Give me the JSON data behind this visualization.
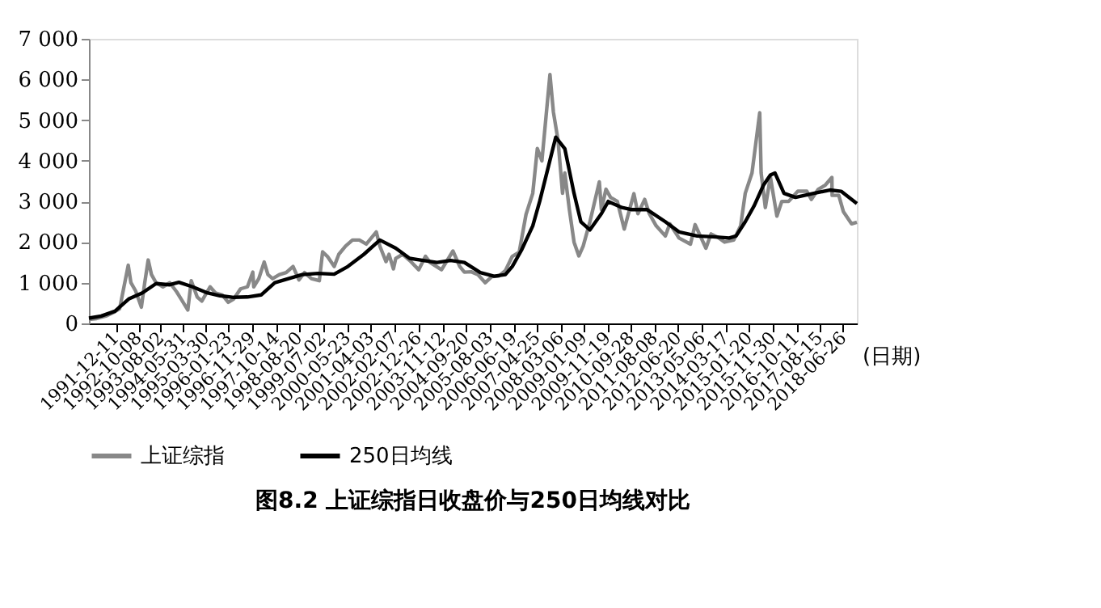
{
  "chart_data": {
    "type": "line",
    "title": "图8.2 上证综指日收盘价与250日均线对比",
    "xlabel": "(日期)",
    "xlim": [
      "1990-12-19",
      "2018-12-28"
    ],
    "xticks": [
      "1991-12-11",
      "1992-10-08",
      "1993-08-02",
      "1994-05-31",
      "1995-03-30",
      "1996-01-23",
      "1996-11-29",
      "1997-10-14",
      "1998-08-20",
      "1999-07-02",
      "2000-05-23",
      "2001-04-03",
      "2002-02-07",
      "2002-12-26",
      "2003-11-12",
      "2004-09-20",
      "2005-08-03",
      "2006-06-19",
      "2007-04-25",
      "2008-03-06",
      "2009-01-09",
      "2009-11-19",
      "2010-09-28",
      "2011-08-08",
      "2012-06-20",
      "2013-05-06",
      "2014-03-17",
      "2015-01-20",
      "2015-11-30",
      "2016-10-11",
      "2017-08-15",
      "2018-06-26"
    ],
    "ylim": [
      0,
      7000
    ],
    "yticks": [
      0,
      {
        "value": 1000,
        "label": "1 000"
      },
      {
        "value": 2000,
        "label": "2 000"
      },
      {
        "value": 3000,
        "label": "3 000"
      },
      {
        "value": 4000,
        "label": "4 000"
      },
      {
        "value": 5000,
        "label": "5 000"
      },
      {
        "value": 6000,
        "label": "6 000"
      },
      {
        "value": 7000,
        "label": "7 000"
      }
    ],
    "grid": false,
    "legend": "bottom",
    "marker": "none",
    "line_style": "solid",
    "series": [
      {
        "name": "上证综指",
        "color": "#888888",
        "x": [
          "1990-12-19",
          "1991-04",
          "1991-08",
          "1991-12",
          "1992-02",
          "1992-05-26",
          "1992-07",
          "1992-09",
          "1992-11-17",
          "1993-01",
          "1993-02-16",
          "1993-04",
          "1993-06",
          "1993-09",
          "1993-12",
          "1994-03",
          "1994-05",
          "1994-07-29",
          "1994-09-13",
          "1994-12",
          "1995-02",
          "1995-05-22",
          "1995-08",
          "1995-11",
          "1996-01-19",
          "1996-04",
          "1996-07",
          "1996-10",
          "1996-12-11",
          "1996-12-24",
          "1997-03",
          "1997-05-12",
          "1997-07",
          "1997-09",
          "1997-12",
          "1998-03",
          "1998-06",
          "1998-08-18",
          "1998-11",
          "1999-02",
          "1999-05-17",
          "1999-06-30",
          "1999-09",
          "1999-12",
          "2000-02",
          "2000-05",
          "2000-08",
          "2000-11",
          "2001-02",
          "2001-06-14",
          "2001-08",
          "2001-10-22",
          "2001-12",
          "2002-01-29",
          "2002-03",
          "2002-06",
          "2002-09",
          "2003-01",
          "2003-04",
          "2003-06",
          "2003-11",
          "2004-04",
          "2004-07",
          "2004-09",
          "2004-12",
          "2005-03",
          "2005-06-06",
          "2005-09",
          "2005-12",
          "2006-03",
          "2006-06",
          "2006-09",
          "2006-12",
          "2007-03",
          "2007-05",
          "2007-07",
          "2007-10-16",
          "2007-12",
          "2008-02",
          "2008-04",
          "2008-05",
          "2008-07",
          "2008-09",
          "2008-11-04",
          "2009-01",
          "2009-04",
          "2009-08-04",
          "2009-09",
          "2009-11",
          "2010-01",
          "2010-04",
          "2010-07-02",
          "2010-11-08",
          "2011-01",
          "2011-04",
          "2011-06",
          "2011-09",
          "2012-01",
          "2012-03",
          "2012-07",
          "2012-12",
          "2013-02",
          "2013-06-25",
          "2013-09",
          "2013-12",
          "2014-03",
          "2014-07",
          "2014-10",
          "2014-12",
          "2015-03",
          "2015-06-12",
          "2015-07",
          "2015-08-26",
          "2015-11",
          "2016-01-27",
          "2016-04",
          "2016-07",
          "2016-11",
          "2017-03",
          "2017-05",
          "2017-08",
          "2017-11",
          "2018-01-29",
          "2018-02",
          "2018-05",
          "2018-07",
          "2018-10-18",
          "2018-12-28"
        ],
        "values": [
          100,
          120,
          180,
          290,
          360,
          1430,
          1000,
          800,
          400,
          1000,
          1560,
          1200,
          1000,
          900,
          1000,
          780,
          600,
          330,
          1050,
          650,
          550,
          900,
          750,
          700,
          520,
          600,
          850,
          900,
          1260,
          900,
          1100,
          1510,
          1200,
          1100,
          1200,
          1250,
          1400,
          1070,
          1250,
          1100,
          1050,
          1760,
          1650,
          1400,
          1700,
          1900,
          2050,
          2050,
          1950,
          2250,
          1900,
          1520,
          1700,
          1340,
          1600,
          1700,
          1550,
          1320,
          1650,
          1500,
          1320,
          1780,
          1400,
          1260,
          1270,
          1200,
          1000,
          1150,
          1160,
          1300,
          1650,
          1750,
          2680,
          3200,
          4300,
          4000,
          6120,
          5200,
          4500,
          3200,
          3700,
          2800,
          2000,
          1660,
          1900,
          2500,
          3480,
          2800,
          3300,
          3100,
          3000,
          2320,
          3190,
          2700,
          3050,
          2700,
          2400,
          2150,
          2450,
          2100,
          1950,
          2430,
          1850,
          2200,
          2120,
          2000,
          2050,
          2400,
          3200,
          3700,
          5180,
          3700,
          2850,
          3600,
          2640,
          3000,
          3000,
          3250,
          3250,
          3050,
          3300,
          3400,
          3590,
          3150,
          3150,
          2750,
          2450,
          2490
        ]
      },
      {
        "name": "250日均线",
        "color": "#000000",
        "x": [
          "1990-12-19",
          "1991-06",
          "1991-12",
          "1992-06",
          "1992-12",
          "1993-06",
          "1993-12",
          "1994-04",
          "1994-10",
          "1995-04",
          "1995-10",
          "1996-04",
          "1996-10",
          "1997-04",
          "1997-10",
          "1998-04",
          "1998-10",
          "1999-05",
          "1999-12",
          "2000-06",
          "2001-01",
          "2001-08",
          "2002-03",
          "2002-09",
          "2003-03",
          "2003-09",
          "2004-03",
          "2004-09",
          "2005-04",
          "2005-10",
          "2006-03",
          "2006-06",
          "2006-10",
          "2007-03",
          "2007-06",
          "2007-10",
          "2008-01",
          "2008-05",
          "2008-09",
          "2008-12",
          "2009-04",
          "2009-09",
          "2009-12",
          "2010-06",
          "2010-10",
          "2011-05",
          "2012-01",
          "2012-07",
          "2013-03",
          "2013-10",
          "2014-05",
          "2014-08",
          "2014-12",
          "2015-04",
          "2015-08",
          "2015-11",
          "2016-01",
          "2016-05",
          "2016-10",
          "2017-06",
          "2018-01",
          "2018-06",
          "2018-12-28"
        ],
        "values": [
          130,
          180,
          300,
          600,
          750,
          980,
          950,
          1010,
          900,
          760,
          680,
          640,
          650,
          700,
          1000,
          1100,
          1200,
          1230,
          1210,
          1400,
          1700,
          2050,
          1850,
          1600,
          1550,
          1500,
          1550,
          1500,
          1250,
          1160,
          1200,
          1400,
          1800,
          2400,
          3000,
          3900,
          4580,
          4300,
          3200,
          2500,
          2300,
          2700,
          3000,
          2850,
          2800,
          2800,
          2500,
          2250,
          2150,
          2130,
          2100,
          2150,
          2500,
          2900,
          3400,
          3650,
          3700,
          3200,
          3100,
          3200,
          3280,
          3250,
          2950
        ]
      }
    ]
  }
}
